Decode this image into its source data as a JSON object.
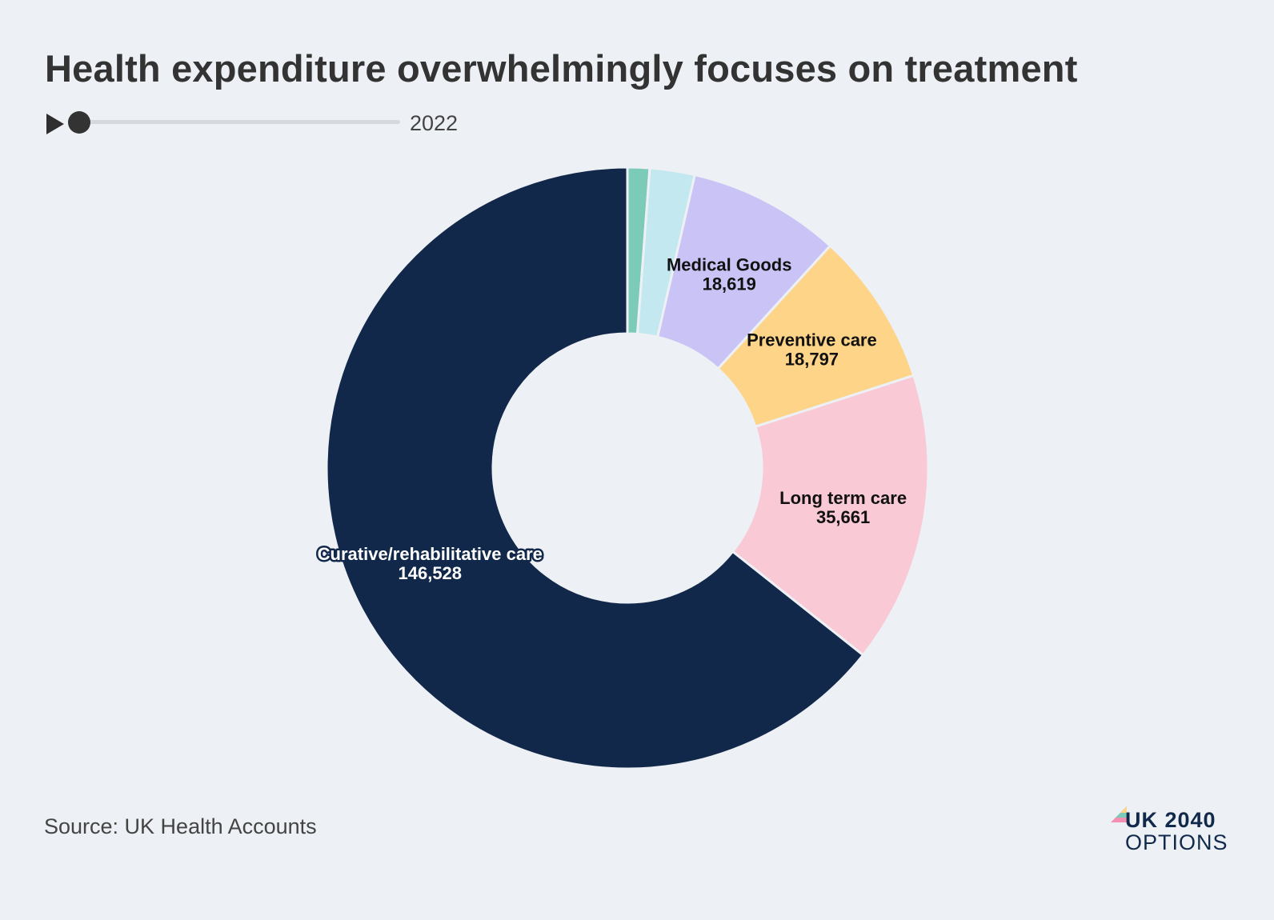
{
  "title": "Health expenditure overwhelmingly focuses on treatment",
  "timeline": {
    "year": "2022",
    "position": 0
  },
  "source": "Source: UK Health Accounts",
  "logo": {
    "line1": "UK 2040",
    "line2": "OPTIONS"
  },
  "chart_data": {
    "type": "pie",
    "title": "Health expenditure overwhelmingly focuses on treatment",
    "donut": true,
    "categories": [
      "",
      "",
      "Medical Goods",
      "Preventive care",
      "Long term care",
      "Curative/rehabilitative care"
    ],
    "values": [
      2700,
      5500,
      18619,
      18797,
      35661,
      146528
    ],
    "value_labels": [
      "",
      "",
      "18,619",
      "18,797",
      "35,661",
      "146,528"
    ],
    "colors": [
      "#7ccbb8",
      "#c4e8ef",
      "#c9c4f5",
      "#fdd488",
      "#f9c9d6",
      "#11284a"
    ],
    "label_colors": [
      "#111111",
      "#111111",
      "#111111",
      "#111111",
      "#111111",
      "#ffffff"
    ]
  }
}
